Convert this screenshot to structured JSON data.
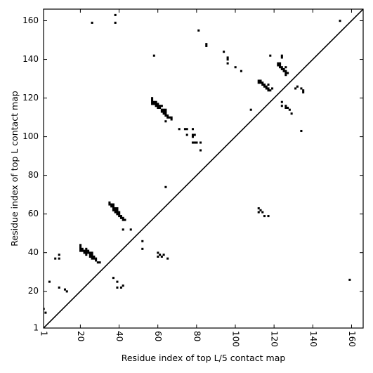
{
  "chart_data": {
    "type": "scatter",
    "xlabel": "Residue index of top L/5 contact map",
    "ylabel": "Residue index of top L contact map",
    "xlim": [
      1,
      166
    ],
    "ylim": [
      1,
      166
    ],
    "x_ticks": [
      1,
      20,
      40,
      60,
      80,
      100,
      120,
      140,
      160
    ],
    "y_ticks": [
      1,
      20,
      40,
      60,
      80,
      100,
      120,
      140,
      160
    ],
    "x_tick_labels": [
      "1",
      "20",
      "40",
      "60",
      "80",
      "100",
      "120",
      "140",
      "160"
    ],
    "y_tick_labels": [
      "1",
      "20",
      "40",
      "60",
      "80",
      "100",
      "120",
      "140",
      "160"
    ],
    "x_tick_rotation": -90,
    "grid": false,
    "diagonal_line": true,
    "marker": "square",
    "marker_color": "#000000",
    "points": [
      [
        1,
        11
      ],
      [
        2,
        9
      ],
      [
        4,
        25
      ],
      [
        7,
        37
      ],
      [
        9,
        37
      ],
      [
        9,
        39
      ],
      [
        9,
        22
      ],
      [
        12,
        21
      ],
      [
        13,
        20
      ],
      [
        26,
        159
      ],
      [
        38,
        163
      ],
      [
        38,
        159
      ],
      [
        58,
        142
      ],
      [
        20,
        41
      ],
      [
        20,
        42
      ],
      [
        20,
        43
      ],
      [
        20,
        44
      ],
      [
        21,
        41
      ],
      [
        21,
        42
      ],
      [
        22,
        40
      ],
      [
        22,
        41
      ],
      [
        23,
        39
      ],
      [
        23,
        40
      ],
      [
        23,
        41
      ],
      [
        23,
        42
      ],
      [
        24,
        40
      ],
      [
        24,
        41
      ],
      [
        25,
        38
      ],
      [
        25,
        39
      ],
      [
        25,
        40
      ],
      [
        26,
        37
      ],
      [
        26,
        38
      ],
      [
        26,
        39
      ],
      [
        26,
        40
      ],
      [
        27,
        37
      ],
      [
        27,
        38
      ],
      [
        28,
        36
      ],
      [
        28,
        37
      ],
      [
        29,
        35
      ],
      [
        30,
        35
      ],
      [
        35,
        65
      ],
      [
        35,
        66
      ],
      [
        36,
        64
      ],
      [
        36,
        65
      ],
      [
        37,
        62
      ],
      [
        37,
        63
      ],
      [
        37,
        64
      ],
      [
        37,
        65
      ],
      [
        38,
        61
      ],
      [
        38,
        62
      ],
      [
        38,
        63
      ],
      [
        39,
        60
      ],
      [
        39,
        61
      ],
      [
        39,
        62
      ],
      [
        39,
        63
      ],
      [
        40,
        59
      ],
      [
        40,
        60
      ],
      [
        40,
        61
      ],
      [
        41,
        58
      ],
      [
        41,
        59
      ],
      [
        42,
        57
      ],
      [
        42,
        58
      ],
      [
        42,
        52
      ],
      [
        43,
        57
      ],
      [
        46,
        52
      ],
      [
        37,
        27
      ],
      [
        39,
        25
      ],
      [
        39,
        22
      ],
      [
        41,
        22
      ],
      [
        42,
        23
      ],
      [
        52,
        46
      ],
      [
        52,
        42
      ],
      [
        60,
        40
      ],
      [
        60,
        38
      ],
      [
        61,
        39
      ],
      [
        62,
        38
      ],
      [
        63,
        39
      ],
      [
        65,
        37
      ],
      [
        64,
        74
      ],
      [
        57,
        117
      ],
      [
        57,
        118
      ],
      [
        57,
        119
      ],
      [
        57,
        120
      ],
      [
        58,
        117
      ],
      [
        58,
        118
      ],
      [
        59,
        116
      ],
      [
        59,
        117
      ],
      [
        59,
        118
      ],
      [
        60,
        115
      ],
      [
        60,
        116
      ],
      [
        60,
        117
      ],
      [
        61,
        115
      ],
      [
        61,
        116
      ],
      [
        62,
        113
      ],
      [
        62,
        114
      ],
      [
        62,
        116
      ],
      [
        63,
        112
      ],
      [
        63,
        113
      ],
      [
        63,
        114
      ],
      [
        64,
        111
      ],
      [
        64,
        112
      ],
      [
        64,
        113
      ],
      [
        64,
        114
      ],
      [
        65,
        110
      ],
      [
        65,
        111
      ],
      [
        66,
        110
      ],
      [
        67,
        109
      ],
      [
        67,
        110
      ],
      [
        64,
        108
      ],
      [
        71,
        104
      ],
      [
        74,
        104
      ],
      [
        75,
        101
      ],
      [
        75,
        104
      ],
      [
        78,
        104
      ],
      [
        78,
        100
      ],
      [
        78,
        101
      ],
      [
        78,
        97
      ],
      [
        79,
        97
      ],
      [
        79,
        101
      ],
      [
        80,
        97
      ],
      [
        82,
        97
      ],
      [
        82,
        93
      ],
      [
        81,
        155
      ],
      [
        85,
        148
      ],
      [
        85,
        147
      ],
      [
        94,
        144
      ],
      [
        96,
        141
      ],
      [
        96,
        140
      ],
      [
        96,
        138
      ],
      [
        100,
        136
      ],
      [
        103,
        134
      ],
      [
        108,
        114
      ],
      [
        112,
        128
      ],
      [
        112,
        129
      ],
      [
        113,
        128
      ],
      [
        113,
        129
      ],
      [
        114,
        127
      ],
      [
        114,
        128
      ],
      [
        115,
        126
      ],
      [
        115,
        127
      ],
      [
        116,
        125
      ],
      [
        116,
        126
      ],
      [
        117,
        124
      ],
      [
        117,
        125
      ],
      [
        117,
        127
      ],
      [
        118,
        124
      ],
      [
        118,
        142
      ],
      [
        119,
        125
      ],
      [
        122,
        138
      ],
      [
        122,
        137
      ],
      [
        123,
        136
      ],
      [
        123,
        137
      ],
      [
        123,
        138
      ],
      [
        124,
        135
      ],
      [
        124,
        136
      ],
      [
        124,
        141
      ],
      [
        124,
        142
      ],
      [
        125,
        134
      ],
      [
        125,
        135
      ],
      [
        126,
        132
      ],
      [
        126,
        133
      ],
      [
        126,
        134
      ],
      [
        126,
        136
      ],
      [
        127,
        133
      ],
      [
        124,
        118
      ],
      [
        124,
        116
      ],
      [
        126,
        115
      ],
      [
        126,
        116
      ],
      [
        127,
        115
      ],
      [
        128,
        114
      ],
      [
        129,
        112
      ],
      [
        131,
        125
      ],
      [
        132,
        126
      ],
      [
        134,
        125
      ],
      [
        135,
        124
      ],
      [
        135,
        123
      ],
      [
        134,
        103
      ],
      [
        112,
        63
      ],
      [
        112,
        61
      ],
      [
        113,
        62
      ],
      [
        114,
        61
      ],
      [
        115,
        59
      ],
      [
        117,
        59
      ],
      [
        154,
        160
      ],
      [
        159,
        26
      ]
    ]
  }
}
